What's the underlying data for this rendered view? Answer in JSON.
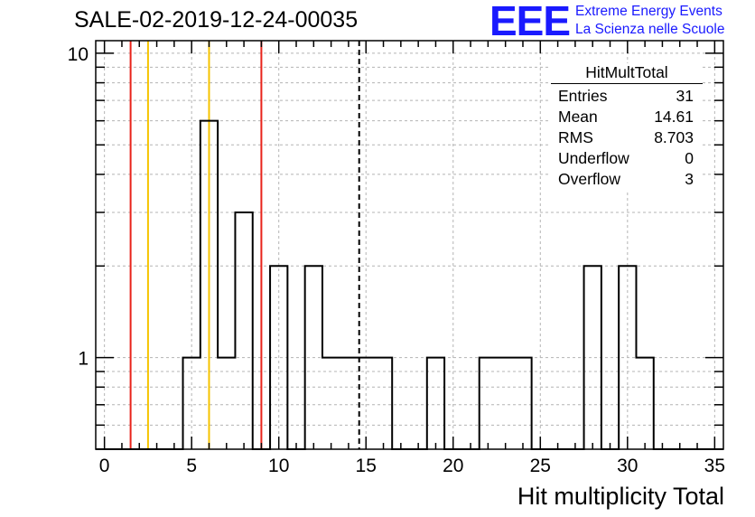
{
  "header": {
    "title": "SALE-02-2019-12-24-00035",
    "logo_mark": "EEE",
    "logo_line1": "Extreme Energy Events",
    "logo_line2": "La Scienza nelle Scuole"
  },
  "stats": {
    "title": "HitMultTotal",
    "rows": [
      {
        "label": "Entries",
        "value": "31"
      },
      {
        "label": "Mean",
        "value": "14.61"
      },
      {
        "label": "RMS",
        "value": "8.703"
      },
      {
        "label": "Underflow",
        "value": "0"
      },
      {
        "label": "Overflow",
        "value": "3"
      }
    ]
  },
  "colors": {
    "histogram": "#000000",
    "red_line": "#e8231a",
    "yellow_line": "#f5c400",
    "grid": "#b4b4b4",
    "logo": "#1a1aff"
  },
  "chart_data": {
    "type": "bar",
    "title": "SALE-02-2019-12-24-00035",
    "xlabel": "Hit multiplicity Total",
    "ylabel": "",
    "xlim": [
      -0.5,
      35.5
    ],
    "ylim": [
      0.5,
      11
    ],
    "yscale": "log",
    "grid": true,
    "legend": "none",
    "x_ticks": [
      0,
      5,
      10,
      15,
      20,
      25,
      30,
      35
    ],
    "y_ticks": [
      1,
      10
    ],
    "bins": [
      {
        "x": 5,
        "count": 1
      },
      {
        "x": 6,
        "count": 6
      },
      {
        "x": 7,
        "count": 1
      },
      {
        "x": 8,
        "count": 3
      },
      {
        "x": 10,
        "count": 2
      },
      {
        "x": 12,
        "count": 2
      },
      {
        "x": 13,
        "count": 1
      },
      {
        "x": 14,
        "count": 1
      },
      {
        "x": 15,
        "count": 1
      },
      {
        "x": 16,
        "count": 1
      },
      {
        "x": 19,
        "count": 1
      },
      {
        "x": 22,
        "count": 1
      },
      {
        "x": 23,
        "count": 1
      },
      {
        "x": 24,
        "count": 1
      },
      {
        "x": 28,
        "count": 2
      },
      {
        "x": 30,
        "count": 2
      },
      {
        "x": 31,
        "count": 1
      }
    ],
    "vertical_lines": [
      {
        "x": 1.5,
        "color": "red",
        "style": "solid"
      },
      {
        "x": 2.5,
        "color": "yellow",
        "style": "solid"
      },
      {
        "x": 6.0,
        "color": "yellow",
        "style": "solid"
      },
      {
        "x": 9.0,
        "color": "red",
        "style": "solid"
      },
      {
        "x": 14.61,
        "color": "black",
        "style": "dashed"
      }
    ]
  }
}
